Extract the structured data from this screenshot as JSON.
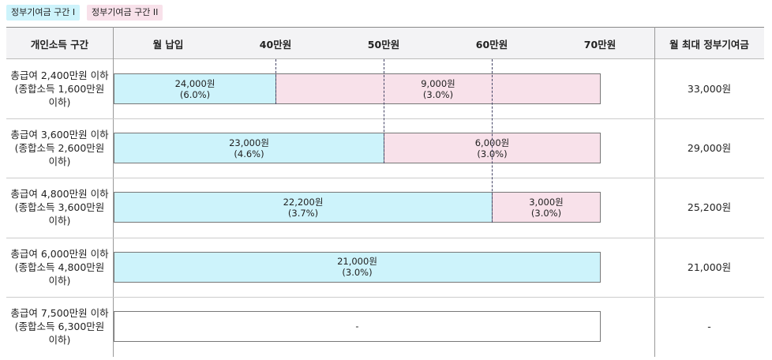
{
  "legend": [
    {
      "label": "정부기여금 구간 I",
      "color": "#cdf3fb"
    },
    {
      "label": "정부기여금 구간 II",
      "color": "#f8e1ea"
    }
  ],
  "table": {
    "headers": [
      "개인소득 구간",
      "월 납입",
      "40만원",
      "50만원",
      "60만원",
      "70만원",
      "월 최대 정부기여금"
    ],
    "rows": [
      {
        "income": [
          "총급여 2,400만원 이하",
          "(종합소득 1,600만원",
          "이하)"
        ],
        "segments": [
          {
            "amount": "24,000원",
            "rate": "(6.0%)"
          },
          {
            "amount": "9,000원",
            "rate": "(3.0%)"
          }
        ],
        "total": "33,000원"
      },
      {
        "income": [
          "총급여 3,600만원 이하",
          "(종합소득 2,600만원",
          "이하)"
        ],
        "segments": [
          {
            "amount": "23,000원",
            "rate": "(4.6%)"
          },
          {
            "amount": "6,000원",
            "rate": "(3.0%)"
          }
        ],
        "total": "29,000원"
      },
      {
        "income": [
          "총급여 4,800만원 이하",
          "(종합소득 3,600만원",
          "이하)"
        ],
        "segments": [
          {
            "amount": "22,200원",
            "rate": "(3.7%)"
          },
          {
            "amount": "3,000원",
            "rate": "(3.0%)"
          }
        ],
        "total": "25,200원"
      },
      {
        "income": [
          "총급여 6,000만원 이하",
          "(종합소득 4,800만원",
          "이하)"
        ],
        "segments": [
          {
            "amount": "21,000원",
            "rate": "(3.0%)"
          }
        ],
        "total": "21,000원"
      },
      {
        "income": [
          "총급여 7,500만원 이하",
          "(종합소득 6,300만원",
          "이하)"
        ],
        "segments": [
          {
            "amount": "-"
          }
        ],
        "total": "-"
      }
    ]
  }
}
